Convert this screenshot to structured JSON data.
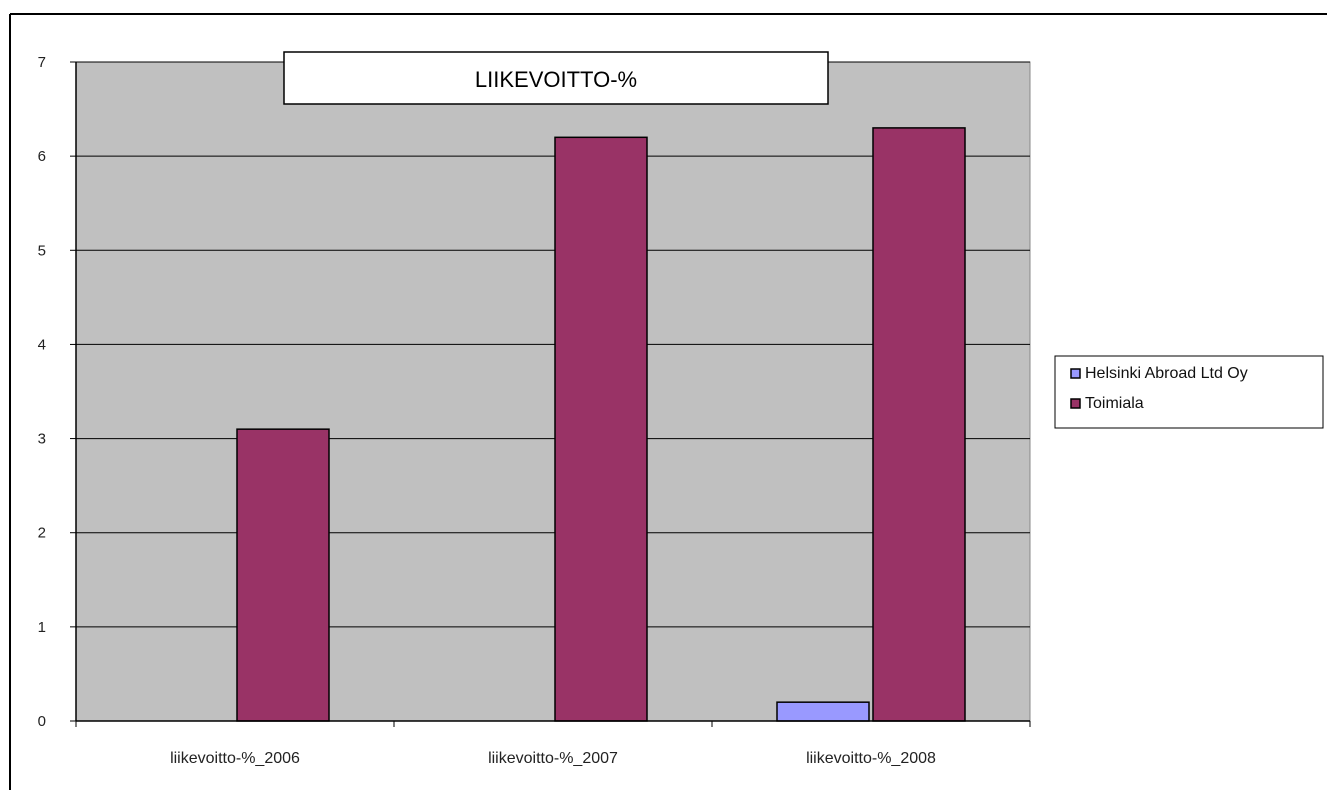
{
  "chart_data": {
    "type": "bar",
    "title": "LIIKEVOITTO-%",
    "xlabel": "",
    "ylabel": "",
    "categories": [
      "liikevoitto-%_2006",
      "liikevoitto-%_2007",
      "liikevoitto-%_2008"
    ],
    "series": [
      {
        "name": "Helsinki Abroad Ltd Oy",
        "values": [
          0,
          0,
          0.2
        ],
        "color": "#9999ff"
      },
      {
        "name": "Toimiala",
        "values": [
          3.1,
          6.2,
          6.3
        ],
        "color": "#993366"
      }
    ],
    "ylim": [
      0,
      7
    ],
    "yticks": [
      0,
      1,
      2,
      3,
      4,
      5,
      6,
      7
    ],
    "grid": true,
    "legend": "right",
    "plot_background": "#c0c0c0"
  }
}
